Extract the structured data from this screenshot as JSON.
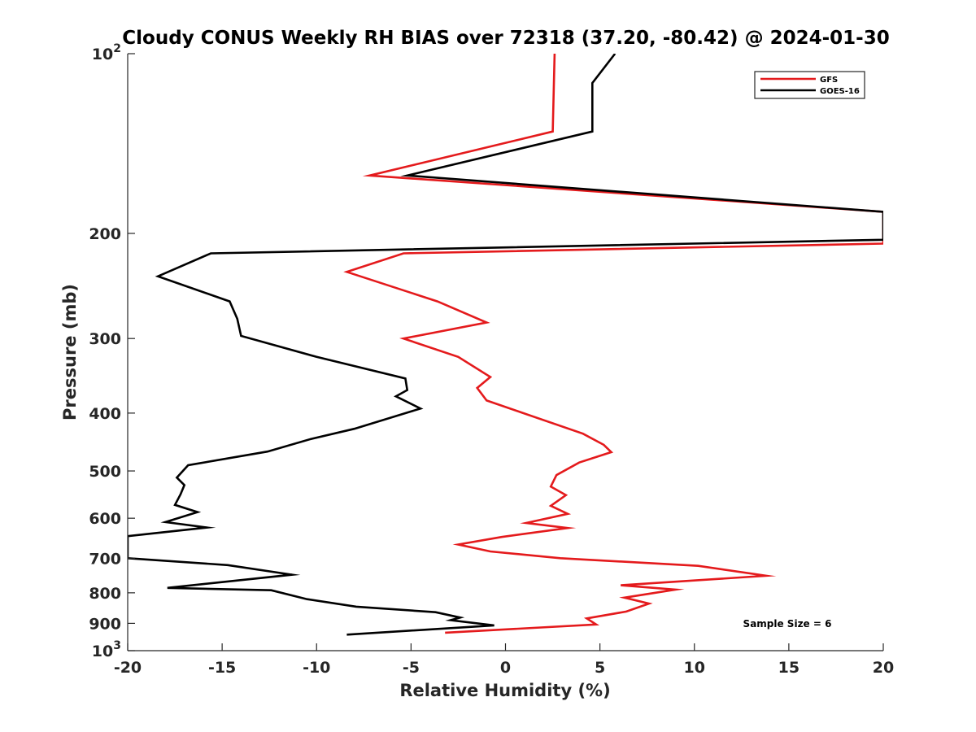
{
  "chart_data": {
    "type": "line",
    "title": "Cloudy CONUS Weekly RH BIAS over 72318 (37.20, -80.42) @ 2024-01-30",
    "xlabel": "Relative Humidity (%)",
    "ylabel": "Pressure (mb)",
    "xlim": [
      -20,
      20
    ],
    "ylim": [
      100,
      1000
    ],
    "y_scale": "log",
    "y_reversed": true,
    "x_ticks": [
      -20,
      -15,
      -10,
      -5,
      0,
      5,
      10,
      15,
      20
    ],
    "x_tick_labels": [
      "-20",
      "-15",
      "-10",
      "-5",
      "0",
      "5",
      "10",
      "15",
      "20"
    ],
    "y_ticks": [
      100,
      200,
      300,
      400,
      500,
      600,
      700,
      800,
      900,
      1000
    ],
    "y_tick_labels": [
      {
        "base": "10",
        "exp": "2"
      },
      {
        "base": "200",
        "exp": ""
      },
      {
        "base": "300",
        "exp": ""
      },
      {
        "base": "400",
        "exp": ""
      },
      {
        "base": "500",
        "exp": ""
      },
      {
        "base": "600",
        "exp": ""
      },
      {
        "base": "700",
        "exp": ""
      },
      {
        "base": "800",
        "exp": ""
      },
      {
        "base": "900",
        "exp": ""
      },
      {
        "base": "10",
        "exp": "3"
      }
    ],
    "grid": false,
    "legend_position": "top-right",
    "annotation": "Sample Size = 6",
    "series": [
      {
        "name": "GFS",
        "color": "#e41a1c",
        "points": [
          [
            2.6,
            100
          ],
          [
            2.5,
            135
          ],
          [
            -7.2,
            160
          ],
          [
            20,
            184
          ],
          [
            20,
            208
          ],
          [
            -5.4,
            216
          ],
          [
            -8.4,
            232
          ],
          [
            -3.6,
            260
          ],
          [
            -1,
            282
          ],
          [
            -5.4,
            300
          ],
          [
            -2.5,
            322
          ],
          [
            -0.8,
            348
          ],
          [
            -1.5,
            363
          ],
          [
            -1,
            381
          ],
          [
            4.1,
            433
          ],
          [
            5.2,
            452
          ],
          [
            5.6,
            465
          ],
          [
            3.9,
            484
          ],
          [
            2.7,
            508
          ],
          [
            2.4,
            531
          ],
          [
            3.2,
            549
          ],
          [
            2.4,
            572
          ],
          [
            3.3,
            590
          ],
          [
            1.1,
            611
          ],
          [
            3.3,
            623
          ],
          [
            -0.2,
            645
          ],
          [
            -2.5,
            664
          ],
          [
            -0.8,
            682
          ],
          [
            2.9,
            700
          ],
          [
            10.2,
            721
          ],
          [
            13.8,
            749
          ],
          [
            6.1,
            777
          ],
          [
            9,
            790
          ],
          [
            6.3,
            815
          ],
          [
            7.6,
            834
          ],
          [
            6.4,
            860
          ],
          [
            4.3,
            883
          ],
          [
            4.8,
            904
          ],
          [
            -3.2,
            933
          ]
        ]
      },
      {
        "name": "GOES-16",
        "color": "#000000",
        "points": [
          [
            5.8,
            100
          ],
          [
            4.6,
            112
          ],
          [
            4.6,
            135
          ],
          [
            -5.2,
            160
          ],
          [
            20,
            184
          ],
          [
            20,
            205
          ],
          [
            -15.6,
            216
          ],
          [
            -18.4,
            236
          ],
          [
            -14.6,
            260
          ],
          [
            -14.2,
            278
          ],
          [
            -14,
            297
          ],
          [
            -10,
            322
          ],
          [
            -5.3,
            350
          ],
          [
            -5.2,
            366
          ],
          [
            -5.8,
            375
          ],
          [
            -4.5,
            393
          ],
          [
            -8,
            425
          ],
          [
            -10.3,
            442
          ],
          [
            -12.6,
            464
          ],
          [
            -16.8,
            489
          ],
          [
            -17.4,
            513
          ],
          [
            -17,
            528
          ],
          [
            -17.2,
            547
          ],
          [
            -17.5,
            570
          ],
          [
            -16.3,
            586
          ],
          [
            -18,
            609
          ],
          [
            -15.8,
            622
          ],
          [
            -20,
            643
          ],
          [
            -20,
            700
          ],
          [
            -14.7,
            719
          ],
          [
            -11.3,
            746
          ],
          [
            -17.9,
            785
          ],
          [
            -12.4,
            792
          ],
          [
            -10.5,
            820
          ],
          [
            -7.9,
            844
          ],
          [
            -3.7,
            862
          ],
          [
            -2.4,
            880
          ],
          [
            -2.9,
            889
          ],
          [
            -0.6,
            907
          ],
          [
            -8.4,
            940
          ]
        ]
      }
    ]
  }
}
